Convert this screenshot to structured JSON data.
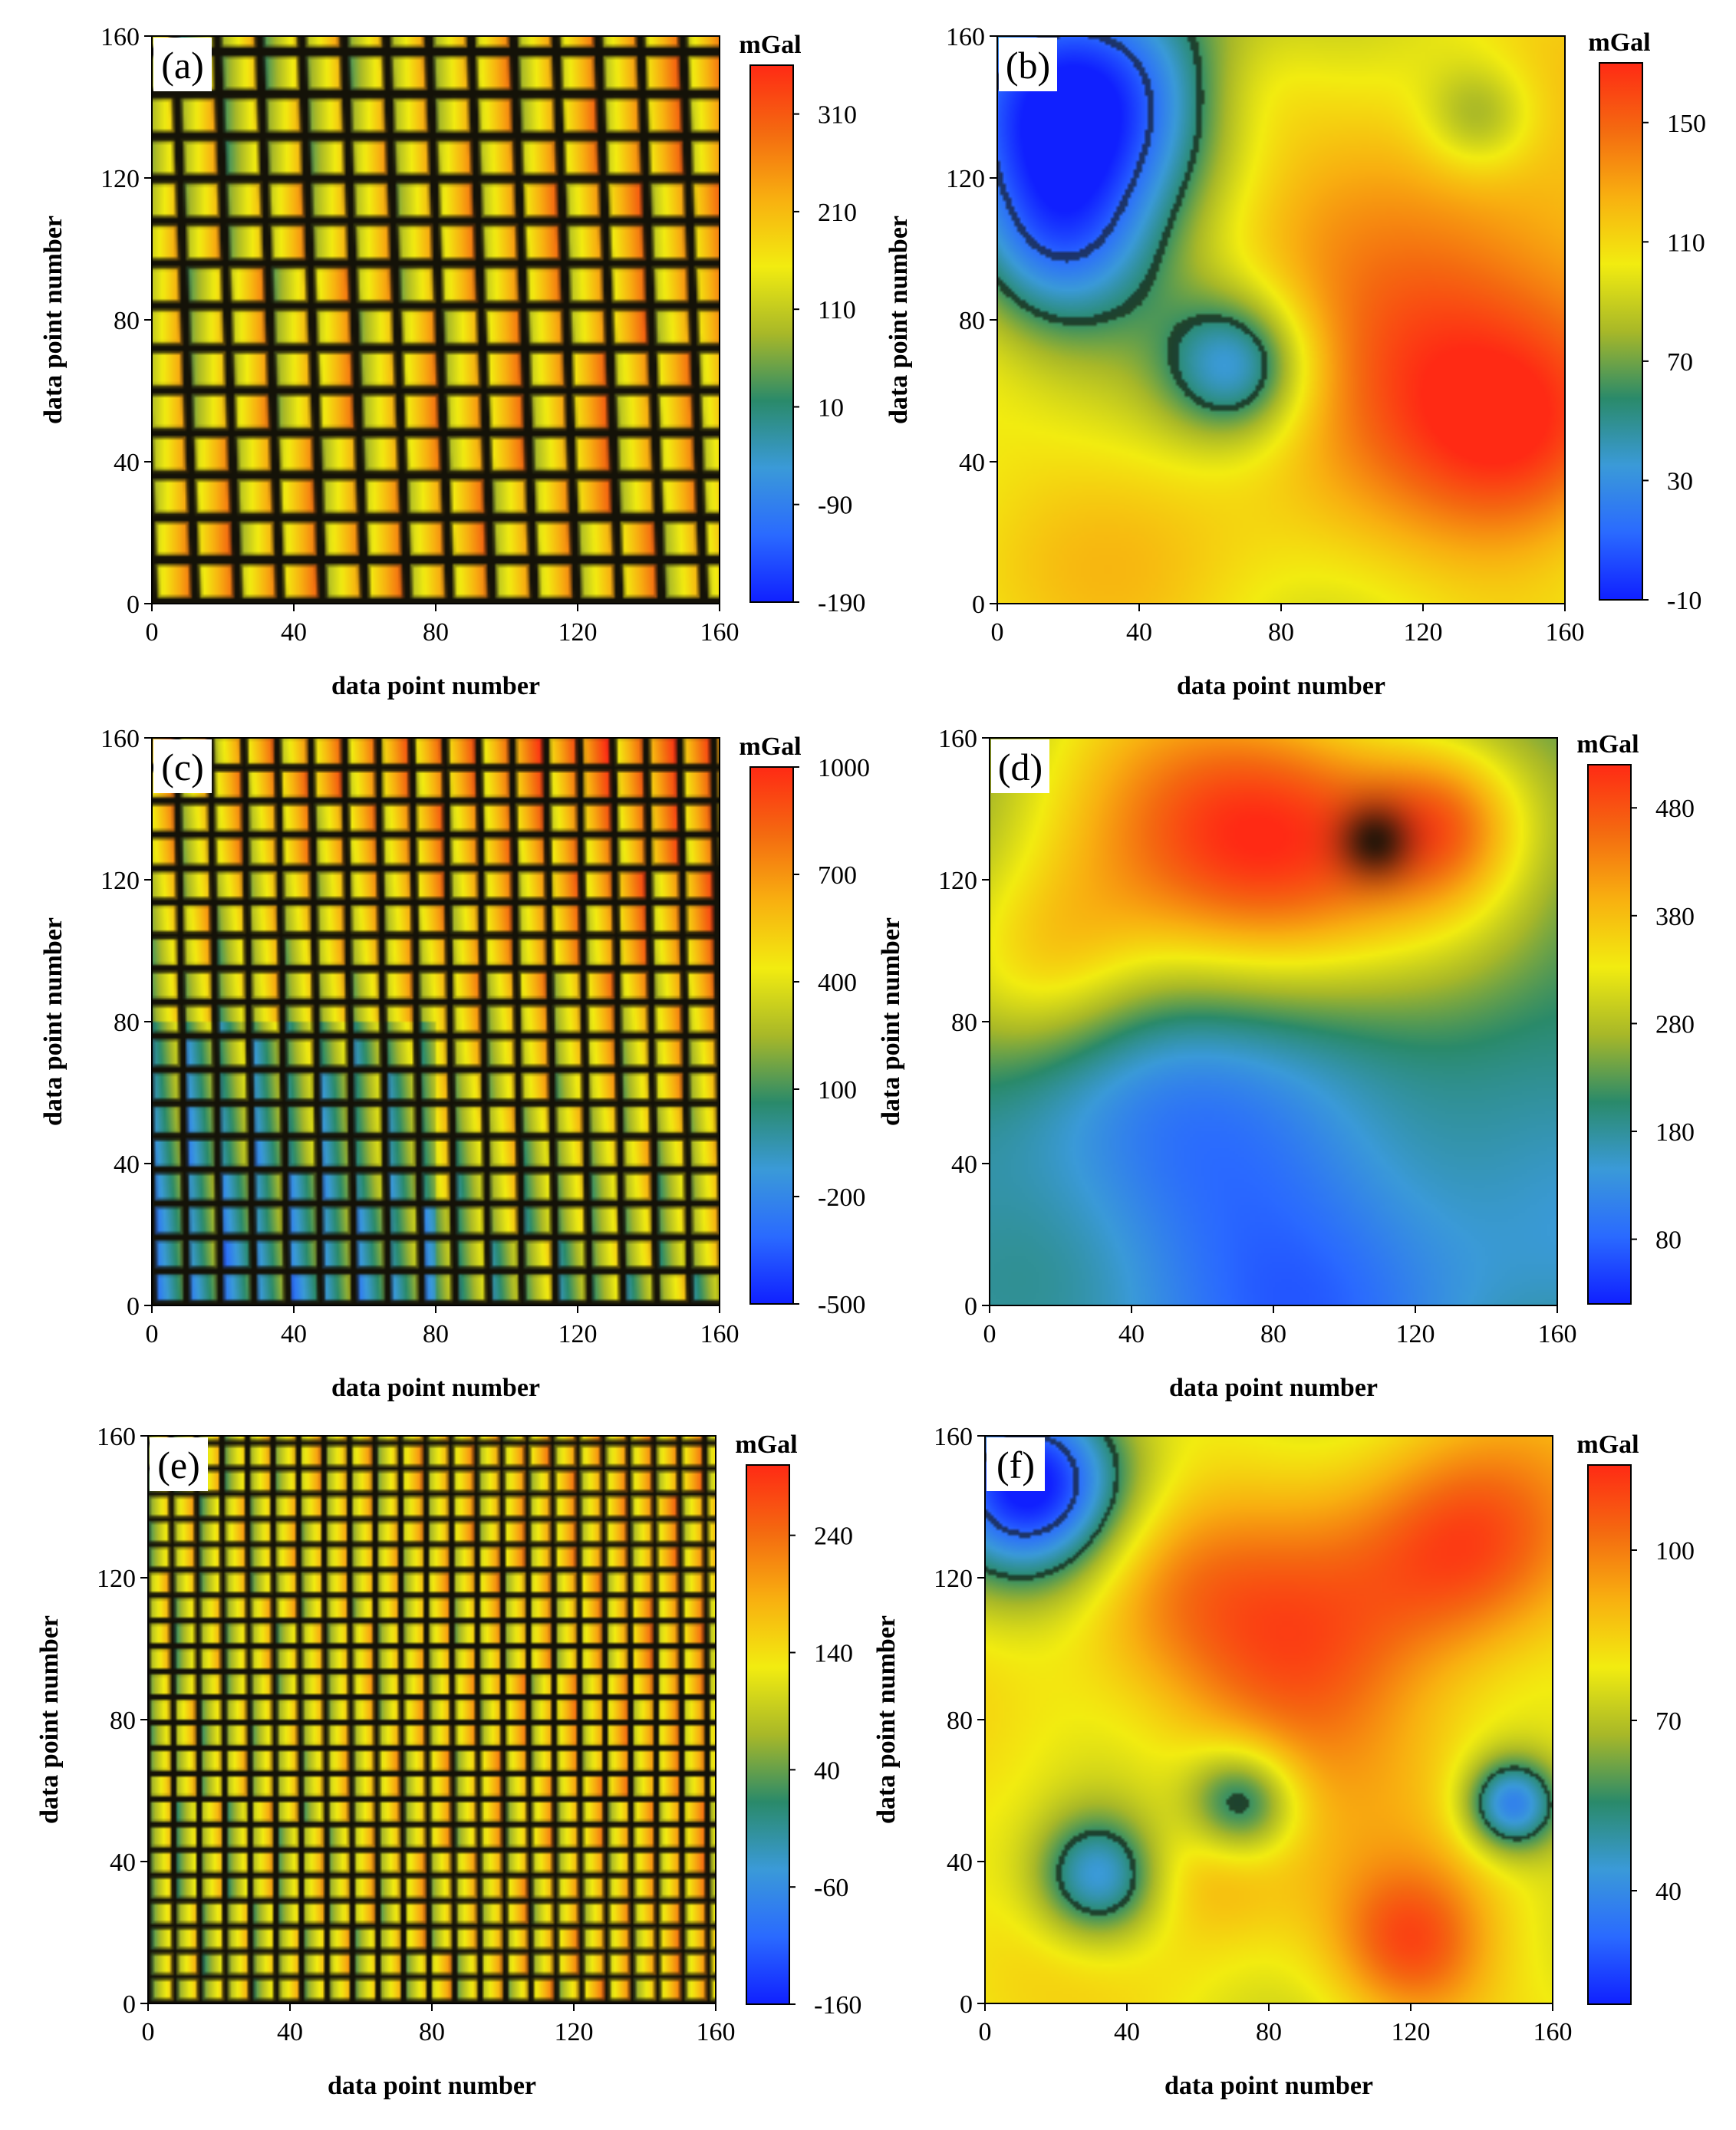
{
  "colormap": {
    "stops": [
      "#1020ff",
      "#2a6aff",
      "#3a9ad8",
      "#2a8a6a",
      "#a8b828",
      "#f2ec10",
      "#f8b010",
      "#f46a10",
      "#ff2a14"
    ],
    "dark_color": "#141208"
  },
  "chart_data": [
    {
      "panel": "(a)",
      "type": "heatmap",
      "pattern": "grid",
      "xlabel": "data point number",
      "ylabel": "data point number",
      "x_ticks": [
        0,
        40,
        80,
        120,
        160
      ],
      "y_ticks": [
        0,
        40,
        80,
        120,
        160
      ],
      "xlim": [
        0,
        160
      ],
      "ylim": [
        0,
        160
      ],
      "colorbar": {
        "unit": "mGal",
        "ticks": [
          310,
          210,
          110,
          10,
          -90,
          -190
        ],
        "range": [
          -190,
          360
        ]
      },
      "cell_size": 12,
      "base": 0.7,
      "tilt": 0.5,
      "trend": [
        -0.06,
        0.14
      ]
    },
    {
      "panel": "(b)",
      "type": "heatmap",
      "pattern": "smooth",
      "xlabel": "data point number",
      "ylabel": "data point number",
      "x_ticks": [
        0,
        40,
        80,
        120,
        160
      ],
      "y_ticks": [
        0,
        40,
        80,
        120,
        160
      ],
      "xlim": [
        0,
        160
      ],
      "ylim": [
        0,
        160
      ],
      "colorbar": {
        "unit": "mGal",
        "ticks": [
          150,
          110,
          70,
          30,
          -10
        ],
        "range": [
          -10,
          170
        ]
      },
      "base": 0.62,
      "blobs": [
        [
          0.15,
          0.88,
          0.18,
          -0.62
        ],
        [
          0.42,
          0.42,
          0.09,
          -0.38
        ],
        [
          0.1,
          0.62,
          0.12,
          -0.3
        ],
        [
          0.8,
          0.5,
          0.22,
          0.33
        ],
        [
          0.95,
          0.28,
          0.14,
          0.22
        ],
        [
          0.85,
          0.86,
          0.07,
          -0.2
        ],
        [
          0.45,
          0.92,
          0.09,
          0.08
        ],
        [
          0.3,
          0.08,
          0.18,
          0.06
        ]
      ]
    },
    {
      "panel": "(c)",
      "type": "heatmap",
      "pattern": "grid",
      "xlabel": "data point number",
      "ylabel": "data point number",
      "x_ticks": [
        0,
        40,
        80,
        120,
        160
      ],
      "y_ticks": [
        0,
        40,
        80,
        120,
        160
      ],
      "xlim": [
        0,
        160
      ],
      "ylim": [
        0,
        160
      ],
      "colorbar": {
        "unit": "mGal",
        "ticks": [
          1000,
          700,
          400,
          100,
          -200,
          -500
        ],
        "range": [
          -500,
          1000
        ]
      },
      "cell_size": 9.5,
      "base": 0.62,
      "tilt": 0.3,
      "trend": [
        0.02,
        0.18
      ]
    },
    {
      "panel": "(d)",
      "type": "heatmap",
      "pattern": "smooth",
      "xlabel": "data point number",
      "ylabel": "data point number",
      "x_ticks": [
        0,
        40,
        80,
        120,
        160
      ],
      "y_ticks": [
        0,
        40,
        80,
        120,
        160
      ],
      "xlim": [
        0,
        160
      ],
      "ylim": [
        0,
        160
      ],
      "colorbar": {
        "unit": "mGal",
        "ticks": [
          480,
          380,
          280,
          180,
          80
        ],
        "range": [
          20,
          520
        ]
      },
      "base": 0.34,
      "blobs": [
        [
          0.55,
          0.85,
          0.2,
          0.5
        ],
        [
          0.8,
          0.85,
          0.1,
          0.28
        ],
        [
          0.2,
          0.85,
          0.22,
          0.35
        ],
        [
          0.5,
          0.15,
          0.3,
          -0.22
        ],
        [
          0.85,
          0.65,
          0.16,
          0.2
        ],
        [
          0.1,
          0.6,
          0.12,
          0.18
        ]
      ]
    },
    {
      "panel": "(e)",
      "type": "heatmap",
      "pattern": "grid",
      "xlabel": "data point number",
      "ylabel": "data point number",
      "x_ticks": [
        0,
        40,
        80,
        120,
        160
      ],
      "y_ticks": [
        0,
        40,
        80,
        120,
        160
      ],
      "xlim": [
        0,
        160
      ],
      "ylim": [
        0,
        160
      ],
      "colorbar": {
        "unit": "mGal",
        "ticks": [
          240,
          140,
          40,
          -60,
          -160
        ],
        "range": [
          -160,
          300
        ]
      },
      "cell_size": 7.2,
      "base": 0.66,
      "tilt": 0.15,
      "trend": [
        0.05,
        0.04
      ]
    },
    {
      "panel": "(f)",
      "type": "heatmap",
      "pattern": "smooth",
      "xlabel": "data point number",
      "ylabel": "data point number",
      "x_ticks": [
        0,
        40,
        80,
        120,
        160
      ],
      "y_ticks": [
        0,
        40,
        80,
        120,
        160
      ],
      "xlim": [
        0,
        160
      ],
      "ylim": [
        0,
        160
      ],
      "colorbar": {
        "unit": "mGal",
        "ticks": [
          100,
          70,
          40
        ],
        "range": [
          20,
          115
        ]
      },
      "base": 0.62,
      "blobs": [
        [
          0.08,
          0.92,
          0.12,
          -0.6
        ],
        [
          0.55,
          0.6,
          0.18,
          0.28
        ],
        [
          0.85,
          0.8,
          0.14,
          0.32
        ],
        [
          0.2,
          0.22,
          0.08,
          -0.4
        ],
        [
          0.45,
          0.35,
          0.07,
          -0.38
        ],
        [
          0.93,
          0.35,
          0.06,
          -0.45
        ],
        [
          0.4,
          0.25,
          0.1,
          0.15
        ],
        [
          0.75,
          0.1,
          0.1,
          0.3
        ],
        [
          0.3,
          0.75,
          0.12,
          0.1
        ]
      ]
    }
  ]
}
